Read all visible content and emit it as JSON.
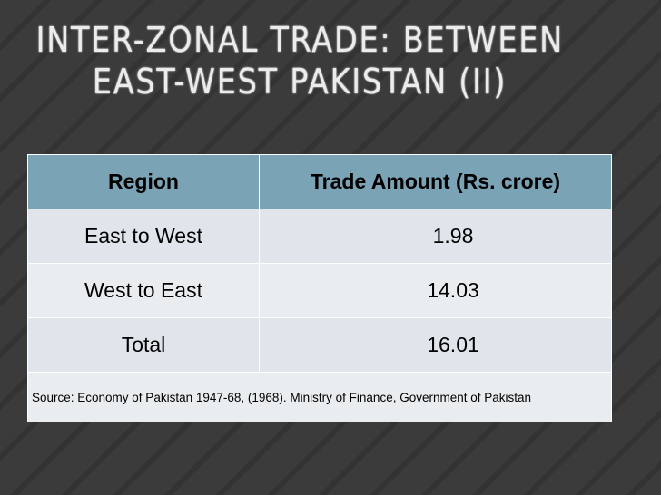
{
  "header": {
    "title": [
      "INTER-ZONAL TRADE: BETWEEN",
      "EAST-WEST PAKISTAN (II)"
    ]
  },
  "table": {
    "columns": [
      "Region",
      "Trade Amount (Rs. crore)"
    ],
    "rows": [
      [
        "East to West",
        1.98
      ],
      [
        "West to East",
        14.03
      ],
      [
        "Total",
        16.01
      ]
    ],
    "source": "Source: Economy of Pakistan 1947-68, (1968). Ministry of Finance, Government of Pakistan"
  }
}
